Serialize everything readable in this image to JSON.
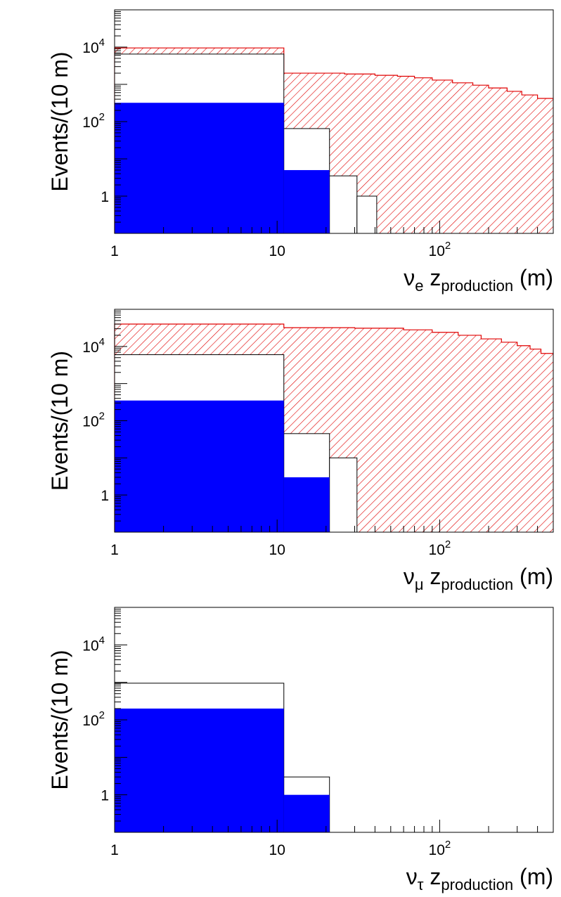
{
  "chart_data": [
    {
      "type": "histogram",
      "xscale": "log",
      "yscale": "log",
      "xlim": [
        1,
        500
      ],
      "ylim": [
        0.1,
        100000
      ],
      "ylabel": "Events/(10 m)",
      "xlabel": {
        "symbol": "ν",
        "sub1": "e",
        "var": "z",
        "sub2": "production",
        "unit": "(m)"
      },
      "xticks": [
        {
          "v": 1,
          "label": "1"
        },
        {
          "v": 10,
          "label": "10"
        },
        {
          "v": 100,
          "base": "10",
          "exp": "2"
        }
      ],
      "yticks": [
        {
          "v": 1,
          "label": "1"
        },
        {
          "v": 100,
          "base": "10",
          "exp": "2"
        },
        {
          "v": 10000,
          "base": "10",
          "exp": "4"
        }
      ],
      "series": [
        {
          "name": "hatched-red",
          "color": "#e00000",
          "style": "hatched",
          "steps": [
            [
              1,
              11,
              9500
            ],
            [
              11,
              26,
              2000
            ],
            [
              26,
              40,
              1900
            ],
            [
              40,
              55,
              1750
            ],
            [
              55,
              70,
              1650
            ],
            [
              70,
              90,
              1500
            ],
            [
              90,
              120,
              1300
            ],
            [
              120,
              160,
              1100
            ],
            [
              160,
              200,
              950
            ],
            [
              200,
              260,
              800
            ],
            [
              260,
              320,
              650
            ],
            [
              320,
              400,
              520
            ],
            [
              400,
              500,
              420
            ]
          ]
        },
        {
          "name": "white-outline",
          "color": "#000000",
          "style": "outline-white",
          "steps": [
            [
              1,
              11,
              6500
            ],
            [
              11,
              21,
              65
            ],
            [
              21,
              31,
              3.5
            ],
            [
              31,
              41,
              1
            ]
          ]
        },
        {
          "name": "blue-filled",
          "color": "#0000ff",
          "style": "filled",
          "steps": [
            [
              1,
              11,
              320
            ],
            [
              11,
              21,
              5
            ]
          ]
        }
      ]
    },
    {
      "type": "histogram",
      "xscale": "log",
      "yscale": "log",
      "xlim": [
        1,
        500
      ],
      "ylim": [
        0.1,
        100000
      ],
      "ylabel": "Events/(10 m)",
      "xlabel": {
        "symbol": "ν",
        "sub1": "μ",
        "var": "z",
        "sub2": "production",
        "unit": "(m)"
      },
      "xticks": [
        {
          "v": 1,
          "label": "1"
        },
        {
          "v": 10,
          "label": "10"
        },
        {
          "v": 100,
          "base": "10",
          "exp": "2"
        }
      ],
      "yticks": [
        {
          "v": 1,
          "label": "1"
        },
        {
          "v": 100,
          "base": "10",
          "exp": "2"
        },
        {
          "v": 10000,
          "base": "10",
          "exp": "4"
        }
      ],
      "series": [
        {
          "name": "hatched-red",
          "color": "#e00000",
          "style": "hatched",
          "steps": [
            [
              1,
              11,
              40000
            ],
            [
              11,
              30,
              32000
            ],
            [
              30,
              60,
              31000
            ],
            [
              60,
              90,
              28000
            ],
            [
              90,
              130,
              24000
            ],
            [
              130,
              180,
              20000
            ],
            [
              180,
              240,
              16000
            ],
            [
              240,
              300,
              13000
            ],
            [
              300,
              360,
              10500
            ],
            [
              360,
              420,
              8500
            ],
            [
              420,
              500,
              6500
            ]
          ]
        },
        {
          "name": "white-outline",
          "color": "#000000",
          "style": "outline-white",
          "steps": [
            [
              1,
              11,
              6000
            ],
            [
              11,
              21,
              45
            ],
            [
              21,
              31,
              10
            ]
          ]
        },
        {
          "name": "blue-filled",
          "color": "#0000ff",
          "style": "filled",
          "steps": [
            [
              1,
              11,
              350
            ],
            [
              11,
              21,
              3
            ]
          ]
        }
      ]
    },
    {
      "type": "histogram",
      "xscale": "log",
      "yscale": "log",
      "xlim": [
        1,
        500
      ],
      "ylim": [
        0.1,
        100000
      ],
      "ylabel": "Events/(10 m)",
      "xlabel": {
        "symbol": "ν",
        "sub1": "τ",
        "var": "z",
        "sub2": "production",
        "unit": "(m)"
      },
      "xticks": [
        {
          "v": 1,
          "label": "1"
        },
        {
          "v": 10,
          "label": "10"
        },
        {
          "v": 100,
          "base": "10",
          "exp": "2"
        }
      ],
      "yticks": [
        {
          "v": 1,
          "label": "1"
        },
        {
          "v": 100,
          "base": "10",
          "exp": "2"
        },
        {
          "v": 10000,
          "base": "10",
          "exp": "4"
        }
      ],
      "series": [
        {
          "name": "white-outline",
          "color": "#000000",
          "style": "outline-white",
          "steps": [
            [
              1,
              11,
              950
            ],
            [
              11,
              21,
              3
            ]
          ]
        },
        {
          "name": "blue-filled",
          "color": "#0000ff",
          "style": "filled",
          "steps": [
            [
              1,
              11,
              200
            ],
            [
              11,
              21,
              1
            ]
          ]
        }
      ]
    }
  ]
}
